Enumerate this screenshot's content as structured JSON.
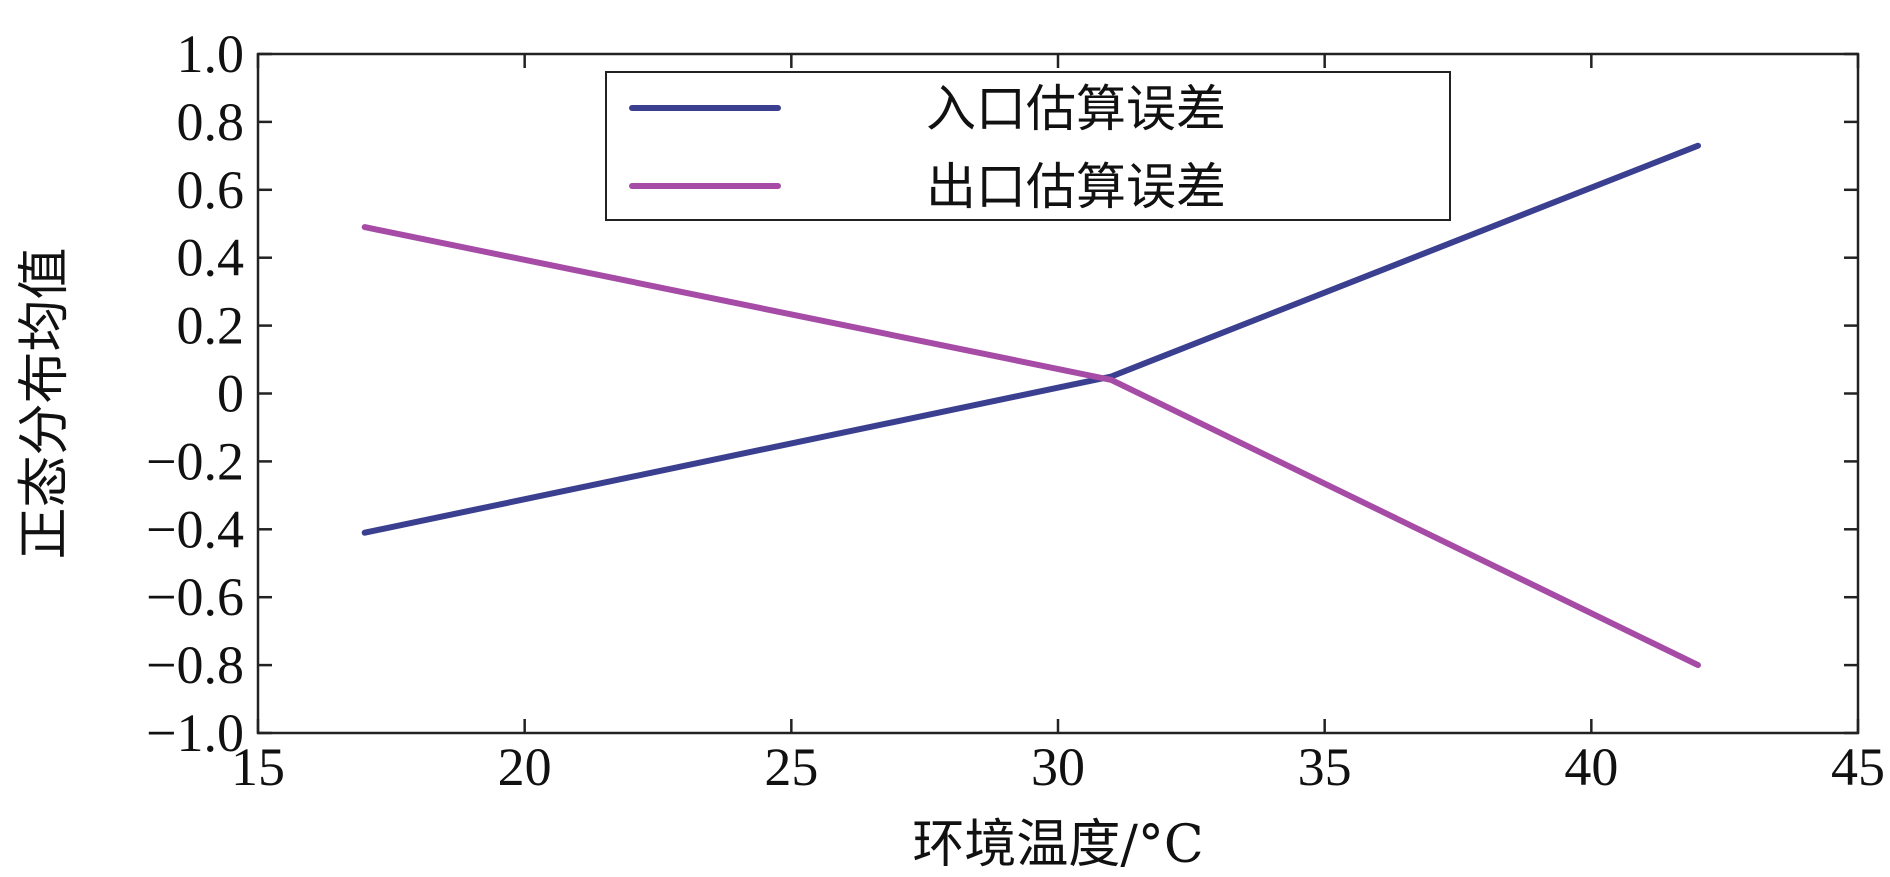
{
  "chart_data": {
    "type": "line",
    "title": "",
    "xlabel": "环境温度/°C",
    "ylabel": "正态分布均值",
    "xlim": [
      15,
      45
    ],
    "ylim": [
      -1.0,
      1.0
    ],
    "x_ticks": [
      15,
      20,
      25,
      30,
      35,
      40,
      45
    ],
    "y_ticks": [
      1.0,
      0.8,
      0.6,
      0.4,
      0.2,
      0,
      -0.2,
      -0.4,
      -0.6,
      -0.8,
      -1.0
    ],
    "x_tick_labels": [
      "15",
      "20",
      "25",
      "30",
      "35",
      "40",
      "45"
    ],
    "y_tick_labels": [
      "1.0",
      "0.8",
      "0.6",
      "0.4",
      "0.2",
      "0",
      "−0.2",
      "−0.4",
      "−0.6",
      "−0.8",
      "−1.0"
    ],
    "grid": false,
    "legend_position": "top-center",
    "series": [
      {
        "name": "入口估算误差",
        "color": "#3b3f8f",
        "x": [
          17,
          31,
          42
        ],
        "y": [
          -0.41,
          0.05,
          0.73
        ]
      },
      {
        "name": "出口估算误差",
        "color": "#a64ca6",
        "x": [
          17,
          31,
          42
        ],
        "y": [
          0.49,
          0.04,
          -0.8
        ]
      }
    ]
  }
}
